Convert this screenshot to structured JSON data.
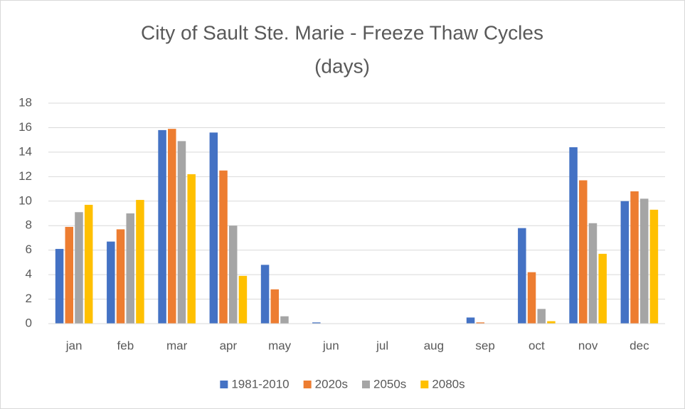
{
  "chart_data": {
    "type": "bar",
    "title": [
      "City of Sault Ste. Marie -  Freeze Thaw Cycles",
      "(days)"
    ],
    "categories": [
      "jan",
      "feb",
      "mar",
      "apr",
      "may",
      "jun",
      "jul",
      "aug",
      "sep",
      "oct",
      "nov",
      "dec"
    ],
    "series": [
      {
        "name": "1981-2010",
        "color": "#4472c4",
        "values": [
          6.1,
          6.7,
          15.8,
          15.6,
          4.8,
          0.1,
          0,
          0,
          0.5,
          7.8,
          14.4,
          10.0
        ]
      },
      {
        "name": "2020s",
        "color": "#ed7d31",
        "values": [
          7.9,
          7.7,
          15.9,
          12.5,
          2.8,
          0,
          0,
          0,
          0.1,
          4.2,
          11.7,
          10.8
        ]
      },
      {
        "name": "2050s",
        "color": "#a5a5a5",
        "values": [
          9.1,
          9.0,
          14.9,
          8.0,
          0.6,
          0,
          0,
          0,
          0,
          1.2,
          8.2,
          10.2
        ]
      },
      {
        "name": "2080s",
        "color": "#ffc000",
        "values": [
          9.7,
          10.1,
          12.2,
          3.9,
          0,
          0,
          0,
          0,
          0,
          0.2,
          5.7,
          9.3
        ]
      }
    ],
    "ylim": [
      0,
      18
    ],
    "yticks": [
      0,
      2,
      4,
      6,
      8,
      10,
      12,
      14,
      16,
      18
    ],
    "grid": true,
    "legend": "bottom"
  }
}
